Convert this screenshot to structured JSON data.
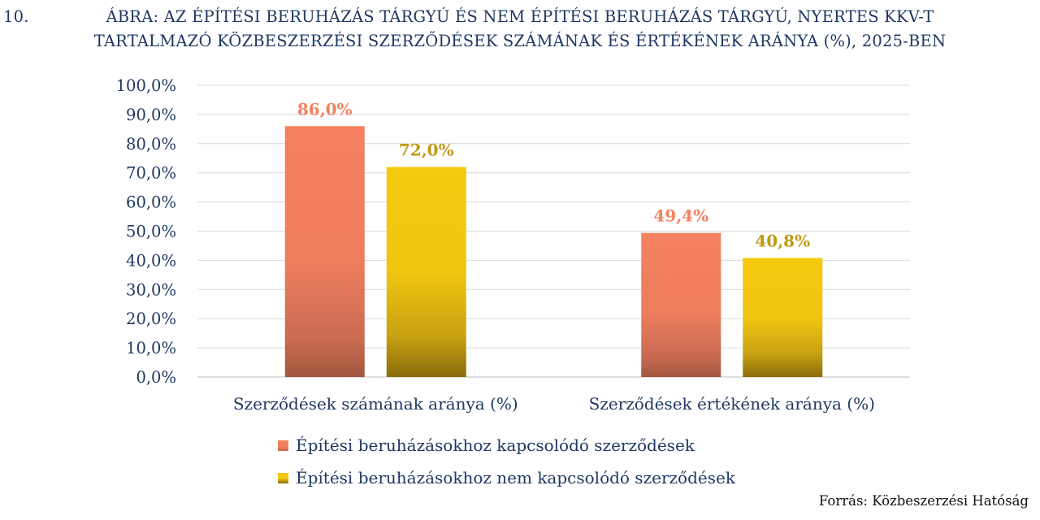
{
  "figure": {
    "number": "10.",
    "title_line1": "ÁBRA: AZ ÉPÍTÉSI BERUHÁZÁS TÁRGYÚ ÉS NEM ÉPÍTÉSI BERUHÁZÁS TÁRGYÚ, NYERTES KKV-T",
    "title_line2": "TARTALMAZÓ KÖZBESZERZÉSI SZERZŐDÉSEK SZÁMÁNAK ÉS ÉRTÉKÉNEK ARÁNYA (%), 2025-BEN",
    "source": "Forrás: Közbeszerzési Hatóság"
  },
  "chart_data": {
    "type": "bar",
    "title": "ÁBRA: AZ ÉPÍTÉSI BERUHÁZÁS TÁRGYÚ ÉS NEM ÉPÍTÉSI BERUHÁZÁS TÁRGYÚ, NYERTES KKV-T TARTALMAZÓ KÖZBESZERZÉSI SZERZŐDÉSEK SZÁMÁNAK ÉS ÉRTÉKÉNEK ARÁNYA (%), 2025-BEN",
    "categories": [
      "Szerződések számának aránya (%)",
      "Szerződések értékének aránya (%)"
    ],
    "series": [
      {
        "name": "Építési beruházásokhoz kapcsolódó szerződések",
        "values": [
          86.0,
          49.4
        ],
        "labels": [
          "86,0%",
          "49,4%"
        ],
        "color": "#f4805f",
        "label_color": "#f4805f"
      },
      {
        "name": "Építési beruházásokhoz nem kapcsolódó szerződések",
        "values": [
          72.0,
          40.8
        ],
        "labels": [
          "72,0%",
          "40,8%"
        ],
        "color": "#f5c90f",
        "label_color": "#c09a10"
      }
    ],
    "ylim": [
      0,
      100
    ],
    "yticks": [
      0,
      10,
      20,
      30,
      40,
      50,
      60,
      70,
      80,
      90,
      100
    ],
    "ytick_labels": [
      "0,0%",
      "10,0%",
      "20,0%",
      "30,0%",
      "40,0%",
      "50,0%",
      "60,0%",
      "70,0%",
      "80,0%",
      "90,0%",
      "100,0%"
    ],
    "grid": true,
    "legend_position": "bottom"
  }
}
